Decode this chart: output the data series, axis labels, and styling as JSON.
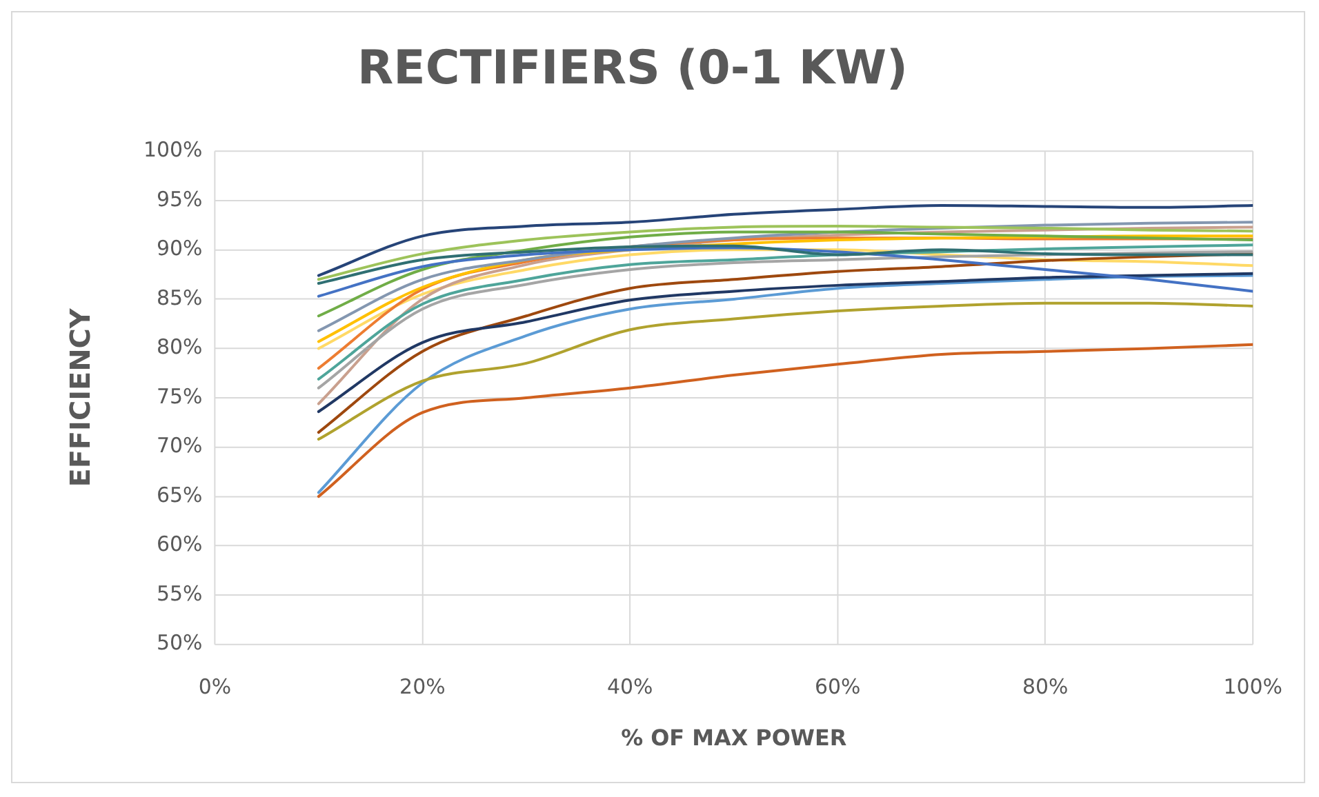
{
  "chart_data": {
    "type": "line",
    "title": "RECTIFIERS (0-1 KW)",
    "xlabel": "% OF MAX POWER",
    "ylabel": "EFFICIENCY",
    "x": [
      10,
      20,
      30,
      40,
      50,
      60,
      70,
      80,
      90,
      100
    ],
    "xlim": [
      0,
      100
    ],
    "xticks": [
      {
        "value": 0,
        "label": "0%"
      },
      {
        "value": 20,
        "label": "20%"
      },
      {
        "value": 40,
        "label": "40%"
      },
      {
        "value": 60,
        "label": "60%"
      },
      {
        "value": 80,
        "label": "80%"
      },
      {
        "value": 100,
        "label": "100%"
      }
    ],
    "ylim": [
      50,
      100
    ],
    "yticks": [
      {
        "value": 50,
        "label": "50%"
      },
      {
        "value": 55,
        "label": "55%"
      },
      {
        "value": 60,
        "label": "60%"
      },
      {
        "value": 65,
        "label": "65%"
      },
      {
        "value": 70,
        "label": "70%"
      },
      {
        "value": 75,
        "label": "75%"
      },
      {
        "value": 80,
        "label": "80%"
      },
      {
        "value": 85,
        "label": "85%"
      },
      {
        "value": 90,
        "label": "90%"
      },
      {
        "value": 95,
        "label": "95%"
      },
      {
        "value": 100,
        "label": "100%"
      }
    ],
    "grid": true,
    "marker": "none",
    "line_style": "solid",
    "series": [
      {
        "color": "#264478",
        "values": [
          87.4,
          91.4,
          92.4,
          92.8,
          93.6,
          94.1,
          94.5,
          94.4,
          94.3,
          94.5
        ]
      },
      {
        "color": "#9dc35a",
        "values": [
          87.0,
          89.6,
          91.0,
          91.8,
          92.3,
          92.4,
          92.3,
          92.2,
          92.0,
          91.9
        ]
      },
      {
        "color": "#2f6f73",
        "values": [
          86.6,
          89.0,
          89.8,
          90.3,
          90.4,
          89.5,
          90.0,
          89.6,
          89.5,
          89.5
        ]
      },
      {
        "color": "#4472c4",
        "values": [
          85.3,
          88.3,
          89.5,
          90.0,
          90.2,
          89.8,
          89.0,
          88.0,
          87.0,
          85.8
        ]
      },
      {
        "color": "#70ad47",
        "values": [
          83.3,
          88.0,
          90.0,
          91.3,
          91.8,
          91.8,
          91.6,
          91.4,
          91.2,
          91.0
        ]
      },
      {
        "color": "#8497b0",
        "values": [
          81.8,
          87.0,
          89.0,
          90.3,
          91.2,
          91.8,
          92.2,
          92.5,
          92.7,
          92.8
        ]
      },
      {
        "color": "#ffc000",
        "values": [
          80.7,
          86.2,
          89.0,
          90.0,
          90.6,
          91.0,
          91.2,
          91.3,
          91.4,
          91.4
        ]
      },
      {
        "color": "#ed7d31",
        "values": [
          78.0,
          86.0,
          88.8,
          90.3,
          91.0,
          91.2,
          91.2,
          91.1,
          91.1,
          91.1
        ]
      },
      {
        "color": "#4ea59a",
        "values": [
          76.9,
          84.5,
          87.0,
          88.5,
          89.0,
          89.5,
          89.8,
          90.1,
          90.3,
          90.5
        ]
      },
      {
        "color": "#a5a5a5",
        "values": [
          76.0,
          84.0,
          86.5,
          88.0,
          88.7,
          89.0,
          89.3,
          89.5,
          89.7,
          89.8
        ]
      },
      {
        "color": "#c9a08e",
        "values": [
          74.4,
          85.0,
          88.5,
          90.0,
          91.0,
          91.5,
          91.8,
          92.0,
          92.2,
          92.3
        ]
      },
      {
        "color": "#203864",
        "values": [
          73.6,
          80.6,
          82.7,
          84.9,
          85.8,
          86.4,
          86.8,
          87.2,
          87.4,
          87.6
        ]
      },
      {
        "color": "#9e480e",
        "values": [
          71.5,
          79.7,
          83.3,
          86.1,
          87.0,
          87.8,
          88.3,
          88.9,
          89.3,
          89.6
        ]
      },
      {
        "color": "#b0a22e",
        "values": [
          70.8,
          76.7,
          78.5,
          81.9,
          83.0,
          83.8,
          84.3,
          84.6,
          84.6,
          84.3
        ]
      },
      {
        "color": "#5b9bd5",
        "values": [
          65.4,
          76.5,
          81.3,
          84.0,
          85.0,
          86.1,
          86.6,
          87.0,
          87.3,
          87.4
        ]
      },
      {
        "color": "#d0611f",
        "values": [
          65.0,
          73.5,
          75.0,
          76.0,
          77.3,
          78.4,
          79.4,
          79.7,
          80.0,
          80.4
        ]
      },
      {
        "color": "#ffd966",
        "values": [
          80.0,
          85.5,
          88.0,
          89.5,
          90.0,
          90.0,
          89.5,
          89.0,
          88.8,
          88.4
        ]
      }
    ]
  }
}
